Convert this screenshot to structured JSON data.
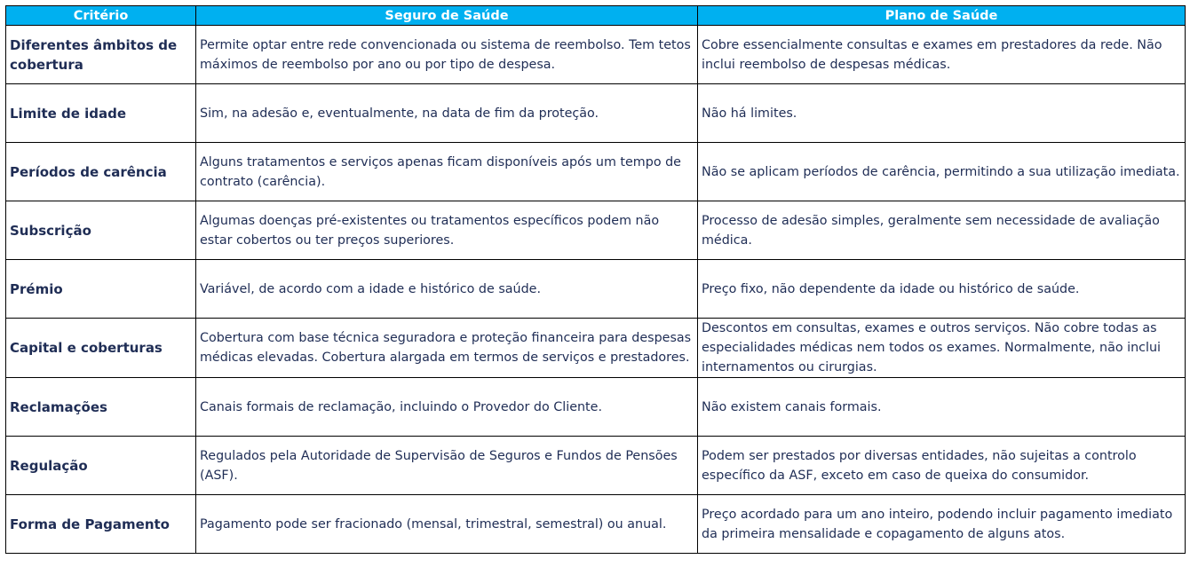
{
  "headers": [
    "Critério",
    "Seguro de Saúde",
    "Plano de Saúde"
  ],
  "rows": [
    {
      "criterio": "Diferentes âmbitos de cobertura",
      "seguro": "Permite optar entre rede convencionada ou sistema de reembolso. Tem tetos máximos de reembolso por ano ou por tipo de despesa.",
      "plano": "Cobre essencialmente consultas e exames em prestadores da rede. Não inclui reembolso de despesas médicas."
    },
    {
      "criterio": "Limite de idade",
      "seguro": "Sim, na adesão e, eventualmente, na data de fim da proteção.",
      "plano": "Não há limites."
    },
    {
      "criterio": "Períodos de carência",
      "seguro": "Alguns tratamentos e serviços apenas ficam disponíveis após um tempo de contrato (carência).",
      "plano": "Não se aplicam períodos de carência, permitindo a sua utilização imediata."
    },
    {
      "criterio": "Subscrição",
      "seguro": "Algumas doenças pré-existentes ou tratamentos específicos podem não estar cobertos ou ter preços superiores.",
      "plano": "Processo de adesão simples, geralmente sem necessidade de avaliação médica."
    },
    {
      "criterio": "Prémio",
      "seguro": "Variável, de acordo com a idade e histórico de saúde.",
      "plano": "Preço fixo, não dependente da idade ou histórico de saúde."
    },
    {
      "criterio": "Capital e coberturas",
      "seguro": "Cobertura com base técnica seguradora e proteção financeira para despesas médicas elevadas. Cobertura alargada em termos de serviços e prestadores.",
      "plano": "Descontos em consultas, exames e outros serviços. Não cobre todas as especialidades médicas nem todos os exames. Normalmente, não inclui internamentos ou cirurgias."
    },
    {
      "criterio": "Reclamações",
      "seguro": "Canais formais de reclamação, incluindo o Provedor do Cliente.",
      "plano": "Não existem canais formais."
    },
    {
      "criterio": "Regulação",
      "seguro": "Regulados pela Autoridade de Supervisão de Seguros e Fundos de Pensões (ASF).",
      "plano": "Podem ser prestados por diversas entidades, não sujeitas a controlo específico da ASF, exceto em caso de queixa do consumidor."
    },
    {
      "criterio": "Forma de Pagamento",
      "seguro": "Pagamento pode ser fracionado (mensal, trimestral, semestral) ou anual.",
      "plano": "Preço acordado para um ano inteiro, podendo incluir pagamento imediato da primeira mensalidade e copagamento de alguns atos."
    }
  ],
  "colors": {
    "header_bg": "#00b0f0",
    "text": "#1f2d55"
  }
}
